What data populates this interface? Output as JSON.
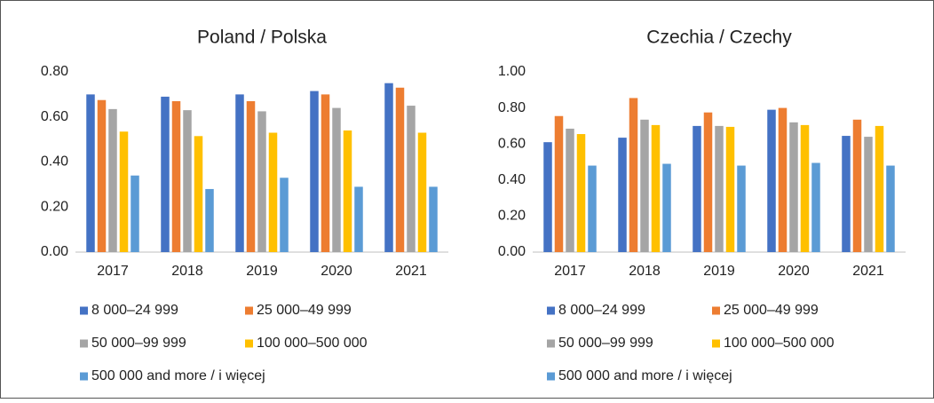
{
  "chart_data": [
    {
      "type": "bar",
      "title": "Poland / Polska",
      "categories": [
        "2017",
        "2018",
        "2019",
        "2020",
        "2021"
      ],
      "series": [
        {
          "name": "8 000–24 999",
          "color": "#4472c4",
          "values": [
            0.7,
            0.69,
            0.7,
            0.715,
            0.75
          ]
        },
        {
          "name": "25 000–49 999",
          "color": "#ed7d31",
          "values": [
            0.675,
            0.67,
            0.67,
            0.7,
            0.73
          ]
        },
        {
          "name": "50 000–99 999",
          "color": "#a5a5a5",
          "values": [
            0.635,
            0.63,
            0.625,
            0.64,
            0.65
          ]
        },
        {
          "name": "100 000–500 000",
          "color": "#ffc000",
          "values": [
            0.535,
            0.515,
            0.53,
            0.54,
            0.53
          ]
        },
        {
          "name": "500 000 and more / i więcej",
          "color": "#5b9bd5",
          "values": [
            0.34,
            0.28,
            0.33,
            0.29,
            0.29
          ]
        }
      ],
      "ylim": [
        0,
        0.8
      ],
      "yticks": [
        {
          "value": 0,
          "label": "0.00"
        },
        {
          "value": 0.2,
          "label": "0.20"
        },
        {
          "value": 0.4,
          "label": "0.40"
        },
        {
          "value": 0.6,
          "label": "0.60"
        },
        {
          "value": 0.8,
          "label": "0.80"
        }
      ],
      "grid": false,
      "legend": "bottom"
    },
    {
      "type": "bar",
      "title": "Czechia / Czechy",
      "categories": [
        "2017",
        "2018",
        "2019",
        "2020",
        "2021"
      ],
      "series": [
        {
          "name": "8 000–24 999",
          "color": "#4472c4",
          "values": [
            0.61,
            0.635,
            0.7,
            0.79,
            0.645
          ]
        },
        {
          "name": "25 000–49 999",
          "color": "#ed7d31",
          "values": [
            0.755,
            0.855,
            0.775,
            0.8,
            0.735
          ]
        },
        {
          "name": "50 000–99 999",
          "color": "#a5a5a5",
          "values": [
            0.685,
            0.735,
            0.7,
            0.72,
            0.64
          ]
        },
        {
          "name": "100 000–500 000",
          "color": "#ffc000",
          "values": [
            0.655,
            0.705,
            0.695,
            0.705,
            0.7
          ]
        },
        {
          "name": "500 000 and more / i więcej",
          "color": "#5b9bd5",
          "values": [
            0.48,
            0.49,
            0.48,
            0.495,
            0.48
          ]
        }
      ],
      "ylim": [
        0,
        1
      ],
      "yticks": [
        {
          "value": 0,
          "label": "0.00"
        },
        {
          "value": 0.2,
          "label": "0.20"
        },
        {
          "value": 0.4,
          "label": "0.40"
        },
        {
          "value": 0.6,
          "label": "0.60"
        },
        {
          "value": 0.8,
          "label": "0.80"
        },
        {
          "value": 1,
          "label": "1.00"
        }
      ],
      "grid": false,
      "legend": "bottom"
    }
  ]
}
